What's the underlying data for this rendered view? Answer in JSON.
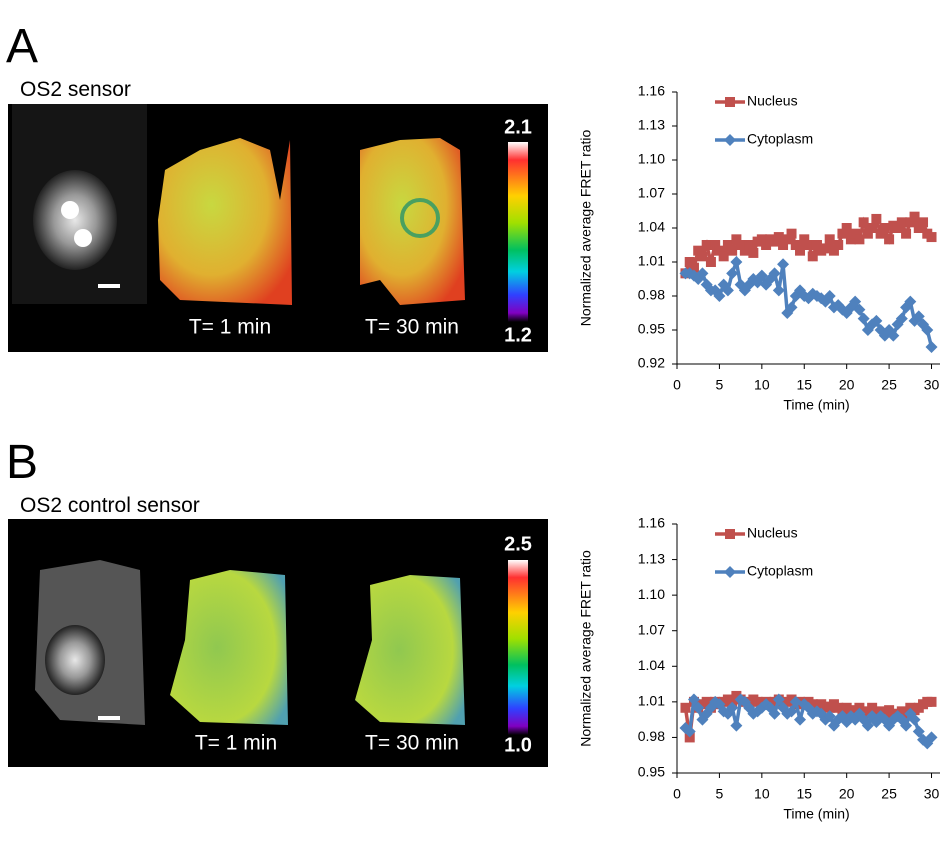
{
  "panels": [
    {
      "label": "A",
      "title": "OS2 sensor",
      "colorbar_max": "2.1",
      "colorbar_min": "1.2",
      "time_labels": [
        "T= 1 min",
        "T= 30 min"
      ]
    },
    {
      "label": "B",
      "title": "OS2 control sensor",
      "colorbar_max": "2.5",
      "colorbar_min": "1.0",
      "time_labels": [
        "T= 1 min",
        "T= 30 min"
      ]
    }
  ],
  "chart_data": [
    {
      "type": "line",
      "y_label": "Normalized average FRET ratio",
      "x_label": "Time (min)",
      "x": [
        1,
        1.5,
        2,
        2.5,
        3,
        3.5,
        4,
        4.5,
        5,
        5.5,
        6,
        6.5,
        7,
        7.5,
        8,
        8.5,
        9,
        9.5,
        10,
        10.5,
        11,
        11.5,
        12,
        12.5,
        13,
        13.5,
        14,
        14.5,
        15,
        15.5,
        16,
        16.5,
        17,
        17.5,
        18,
        18.5,
        19,
        19.5,
        20,
        20.5,
        21,
        21.5,
        22,
        22.5,
        23,
        23.5,
        24,
        24.5,
        25,
        25.5,
        26,
        26.5,
        27,
        27.5,
        28,
        28.5,
        29,
        29.5,
        30
      ],
      "series": [
        {
          "name": "Nucleus",
          "color": "#c0504d",
          "marker": "square",
          "values": [
            1.0,
            1.01,
            1.005,
            1.02,
            1.015,
            1.025,
            1.01,
            1.025,
            1.02,
            1.015,
            1.025,
            1.02,
            1.03,
            1.025,
            1.02,
            1.025,
            1.018,
            1.028,
            1.03,
            1.025,
            1.03,
            1.028,
            1.032,
            1.025,
            1.03,
            1.035,
            1.025,
            1.02,
            1.03,
            1.025,
            1.015,
            1.025,
            1.02,
            1.022,
            1.03,
            1.02,
            1.025,
            1.035,
            1.04,
            1.03,
            1.035,
            1.03,
            1.045,
            1.035,
            1.04,
            1.048,
            1.035,
            1.04,
            1.03,
            1.042,
            1.04,
            1.045,
            1.035,
            1.045,
            1.05,
            1.04,
            1.045,
            1.035,
            1.032
          ]
        },
        {
          "name": "Cytoplasm",
          "color": "#4f81bd",
          "marker": "diamond",
          "values": [
            1.0,
            1.0,
            0.998,
            0.995,
            1.0,
            0.99,
            0.985,
            0.985,
            0.98,
            0.99,
            0.985,
            1.0,
            1.01,
            0.99,
            0.985,
            0.99,
            0.995,
            0.992,
            0.998,
            0.99,
            0.995,
            1.0,
            0.985,
            1.008,
            0.965,
            0.97,
            0.98,
            0.985,
            0.98,
            0.978,
            0.982,
            0.98,
            0.978,
            0.975,
            0.98,
            0.97,
            0.972,
            0.968,
            0.965,
            0.97,
            0.975,
            0.968,
            0.96,
            0.95,
            0.955,
            0.958,
            0.95,
            0.945,
            0.95,
            0.945,
            0.955,
            0.96,
            0.97,
            0.975,
            0.958,
            0.962,
            0.955,
            0.95,
            0.935
          ]
        }
      ],
      "xlim": [
        0,
        31
      ],
      "xticks": [
        0,
        5,
        10,
        15,
        20,
        25,
        30
      ],
      "ylim": [
        0.92,
        1.16
      ],
      "yticks": [
        0.92,
        0.95,
        0.98,
        1.01,
        1.04,
        1.07,
        {
          "value": 1.1,
          "label": "1.10"
        },
        1.13,
        1.16
      ],
      "grid": false,
      "legend": "upper left"
    },
    {
      "type": "line",
      "y_label": "Normalized average FRET ratio",
      "x_label": "Time (min)",
      "x": [
        1,
        1.5,
        2,
        2.5,
        3,
        3.5,
        4,
        4.5,
        5,
        5.5,
        6,
        6.5,
        7,
        7.5,
        8,
        8.5,
        9,
        9.5,
        10,
        10.5,
        11,
        11.5,
        12,
        12.5,
        13,
        13.5,
        14,
        14.5,
        15,
        15.5,
        16,
        16.5,
        17,
        17.5,
        18,
        18.5,
        19,
        19.5,
        20,
        20.5,
        21,
        21.5,
        22,
        22.5,
        23,
        23.5,
        24,
        24.5,
        25,
        25.5,
        26,
        26.5,
        27,
        27.5,
        28,
        28.5,
        29,
        29.5,
        30
      ],
      "series": [
        {
          "name": "Nucleus",
          "color": "#c0504d",
          "marker": "square",
          "values": [
            1.005,
            0.98,
            1.01,
            1.005,
            1.008,
            1.01,
            1.005,
            1.01,
            1.008,
            1.01,
            1.012,
            1.01,
            1.015,
            1.012,
            1.01,
            1.008,
            1.012,
            1.01,
            1.008,
            1.01,
            1.008,
            1.01,
            1.012,
            1.008,
            1.01,
            1.012,
            1.008,
            1.01,
            1.008,
            1.01,
            1.008,
            1.005,
            1.008,
            1.006,
            1.005,
            1.008,
            1.005,
            1.002,
            1.005,
            1.003,
            1.0,
            1.005,
            1.002,
            1.0,
            1.005,
            0.998,
            1.002,
            1.0,
            1.003,
            1.0,
            0.998,
            1.002,
            1.0,
            1.005,
            1.003,
            1.005,
            1.008,
            1.01,
            1.01
          ]
        },
        {
          "name": "Cytoplasm",
          "color": "#4f81bd",
          "marker": "diamond",
          "values": [
            0.988,
            0.985,
            1.012,
            1.005,
            0.995,
            1.0,
            1.005,
            1.01,
            1.008,
            1.002,
            1.0,
            1.005,
            0.99,
            1.012,
            1.01,
            1.005,
            1.0,
            1.002,
            1.005,
            1.008,
            1.005,
            1.0,
            1.012,
            1.005,
            1.0,
            1.002,
            1.01,
            0.995,
            1.008,
            1.005,
            1.0,
            1.002,
            1.0,
            0.995,
            0.998,
            0.99,
            0.995,
            0.998,
            0.993,
            0.998,
            0.995,
            1.0,
            0.995,
            0.99,
            0.998,
            0.993,
            0.998,
            0.995,
            0.99,
            0.995,
            0.998,
            0.995,
            0.99,
            1.0,
            0.995,
            0.985,
            0.978,
            0.975,
            0.98
          ]
        }
      ],
      "xlim": [
        0,
        31
      ],
      "xticks": [
        0,
        5,
        10,
        15,
        20,
        25,
        30
      ],
      "ylim": [
        0.95,
        1.16
      ],
      "yticks": [
        0.95,
        0.98,
        1.01,
        1.04,
        1.07,
        {
          "value": 1.1,
          "label": "1.10"
        },
        1.13,
        1.16
      ],
      "grid": false,
      "legend": "upper left"
    }
  ]
}
